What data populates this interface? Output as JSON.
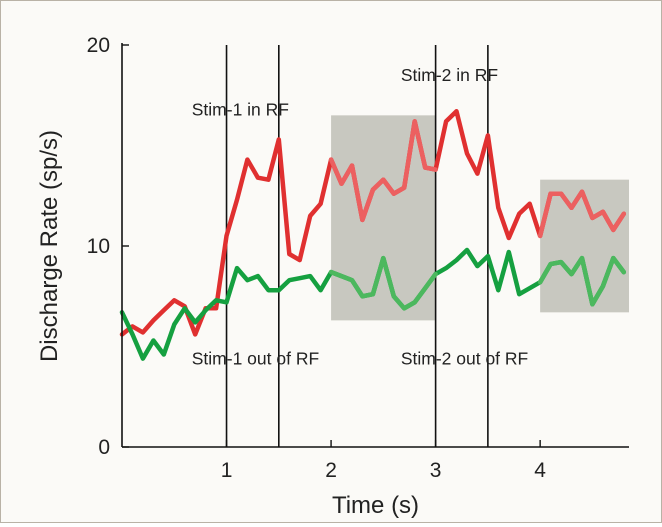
{
  "chart_data": {
    "type": "line",
    "title": "",
    "xlabel": "Time (s)",
    "ylabel": "Discharge Rate (sp/s)",
    "xlim": [
      0,
      4.85
    ],
    "ylim": [
      0,
      20
    ],
    "x_ticks": [
      1,
      2,
      3,
      4
    ],
    "y_ticks": [
      0,
      10,
      20
    ],
    "grid": false,
    "legend": "none",
    "series": [
      {
        "color": "#e03030",
        "highlight_color": "#ec6060",
        "x": [
          0.0,
          0.1,
          0.2,
          0.3,
          0.4,
          0.5,
          0.6,
          0.7,
          0.8,
          0.9,
          1.0,
          1.1,
          1.2,
          1.3,
          1.4,
          1.5,
          1.6,
          1.7,
          1.8,
          1.9,
          2.0,
          2.1,
          2.2,
          2.3,
          2.4,
          2.5,
          2.6,
          2.7,
          2.8,
          2.9,
          3.0,
          3.1,
          3.2,
          3.3,
          3.4,
          3.5,
          3.6,
          3.7,
          3.8,
          3.9,
          4.0,
          4.1,
          4.2,
          4.3,
          4.4,
          4.5,
          4.6,
          4.7,
          4.8
        ],
        "y": [
          5.6,
          6.0,
          5.7,
          6.3,
          6.8,
          7.3,
          7.0,
          5.6,
          6.9,
          6.9,
          10.5,
          12.3,
          14.3,
          13.4,
          13.3,
          15.3,
          9.6,
          9.3,
          11.5,
          12.1,
          14.3,
          13.1,
          14.0,
          11.3,
          12.8,
          13.3,
          12.6,
          12.9,
          16.2,
          13.9,
          13.8,
          16.2,
          16.7,
          14.6,
          13.6,
          15.5,
          11.9,
          10.4,
          11.6,
          12.1,
          10.5,
          12.6,
          12.6,
          11.9,
          12.7,
          11.4,
          11.7,
          10.8,
          11.6
        ]
      },
      {
        "color": "#15a040",
        "highlight_color": "#4cb85e",
        "x": [
          0.0,
          0.1,
          0.2,
          0.3,
          0.4,
          0.5,
          0.6,
          0.7,
          0.8,
          0.9,
          1.0,
          1.1,
          1.2,
          1.3,
          1.4,
          1.5,
          1.6,
          1.7,
          1.8,
          1.9,
          2.0,
          2.1,
          2.2,
          2.3,
          2.4,
          2.5,
          2.6,
          2.7,
          2.8,
          2.9,
          3.0,
          3.1,
          3.2,
          3.3,
          3.4,
          3.5,
          3.6,
          3.7,
          3.8,
          3.9,
          4.0,
          4.1,
          4.2,
          4.3,
          4.4,
          4.5,
          4.6,
          4.7,
          4.8
        ],
        "y": [
          6.7,
          5.6,
          4.4,
          5.3,
          4.6,
          6.1,
          6.9,
          6.2,
          6.8,
          7.3,
          7.2,
          8.9,
          8.3,
          8.5,
          7.8,
          7.8,
          8.3,
          8.4,
          8.5,
          7.8,
          8.7,
          8.5,
          8.3,
          7.5,
          7.6,
          9.4,
          7.5,
          6.9,
          7.2,
          7.9,
          8.6,
          8.9,
          9.3,
          9.8,
          9.0,
          9.5,
          7.8,
          9.7,
          7.6,
          7.9,
          8.2,
          9.1,
          9.2,
          8.6,
          9.4,
          7.1,
          8.0,
          9.4,
          8.7
        ]
      }
    ],
    "shaded_regions": [
      {
        "x0": 2.0,
        "x1": 3.0,
        "y0": 6.3,
        "y1": 16.5,
        "color": "#c8c8c0"
      },
      {
        "x0": 4.0,
        "x1": 4.85,
        "y0": 6.7,
        "y1": 13.3,
        "color": "#c8c8c0"
      }
    ],
    "vertical_lines": [
      1.0,
      1.5,
      3.0,
      3.5
    ],
    "annotations": [
      {
        "text": "Stim-1 in RF",
        "x": 1.05,
        "y": 16.5
      },
      {
        "text": "Stim-2 in RF",
        "x": 3.05,
        "y": 18.2
      },
      {
        "text": "Stim-1 out of RF",
        "x": 1.05,
        "y": 4.1
      },
      {
        "text": "Stim-2 out of RF",
        "x": 3.05,
        "y": 4.1
      }
    ]
  }
}
